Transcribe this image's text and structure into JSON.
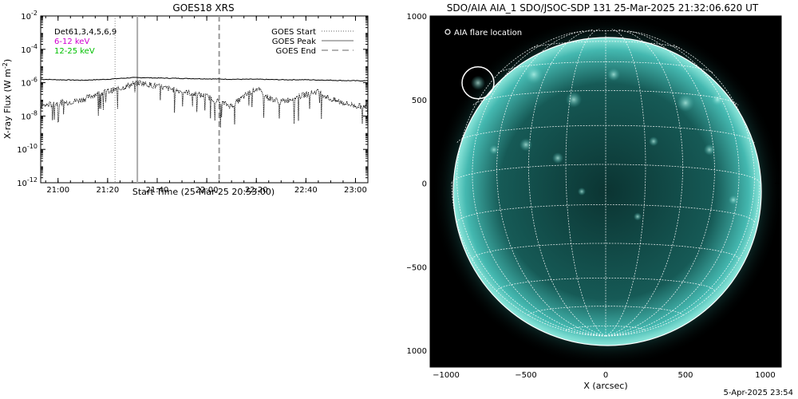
{
  "goes": {
    "title": "GOES18 XRS",
    "ylabel": "X-ray Flux (W m",
    "ylabel_sup": "-2",
    "ylabel_close": ")",
    "xlabel": "Start Time (25-Mar-25 20:53:00)",
    "legend_left": [
      {
        "label": "Det61,3,4,5,6,9",
        "color": "#000000"
      },
      {
        "label": "6-12 keV",
        "color": "#d000d0"
      },
      {
        "label": "12-25 keV",
        "color": "#00c000"
      }
    ],
    "legend_right": [
      {
        "label": "GOES Start",
        "style": "dotted"
      },
      {
        "label": "GOES Peak",
        "style": "solid"
      },
      {
        "label": "GOES End",
        "style": "dashed"
      }
    ]
  },
  "aia": {
    "title": "SDO/AIA AIA_1 SDO/JSOC-SDP 131 25-Mar-2025 21:32:06.620 UT",
    "legend": "AIA flare location",
    "xlabel": "X (arcsec)",
    "colors": {
      "disk": "#44b8b0",
      "core": "#0b3432",
      "limb": "#8fe8dc",
      "bright": "#c8fff4"
    },
    "flare_location": {
      "x": -800,
      "y": 600
    }
  },
  "timestamp": "5-Apr-2025 23:54",
  "chart_data": [
    {
      "type": "line",
      "title": "GOES18 XRS",
      "xlabel": "Start Time (25-Mar-25 20:53:00)",
      "ylabel": "X-ray Flux (W m-2)",
      "yscale": "log",
      "ylim": [
        1e-12,
        0.01
      ],
      "xlim": [
        "20:53",
        "23:05"
      ],
      "x_ticks": [
        "21:00",
        "21:20",
        "21:40",
        "22:00",
        "22:20",
        "22:40",
        "23:00"
      ],
      "y_ticks": [
        "10-12",
        "10-10",
        "10-8",
        "10-6",
        "10-4",
        "10-2"
      ],
      "legend": [
        "GOES Start",
        "GOES Peak",
        "GOES End"
      ],
      "series": [
        {
          "x": [
            "20:53",
            "21:00",
            "21:10",
            "21:20",
            "21:25",
            "21:30",
            "21:35",
            "21:40",
            "21:50",
            "22:00",
            "22:10",
            "22:20",
            "22:30",
            "22:40",
            "22:50",
            "23:00",
            "23:05"
          ],
          "values": [
            1.6e-06,
            1.5e-06,
            1.4e-06,
            1.6e-06,
            1.8e-06,
            2e-06,
            2e-06,
            1.9e-06,
            1.8e-06,
            1.7e-06,
            1.6e-06,
            1.6e-06,
            1.5e-06,
            1.5e-06,
            1.4e-06,
            1.3e-06,
            1.3e-06
          ]
        },
        {
          "x": [
            "20:53",
            "21:00",
            "21:05",
            "21:10",
            "21:15",
            "21:20",
            "21:25",
            "21:30",
            "21:33",
            "21:40",
            "21:50",
            "22:00",
            "22:05",
            "22:10",
            "22:15",
            "22:20",
            "22:25",
            "22:30",
            "22:40",
            "22:45",
            "22:50",
            "23:00",
            "23:05"
          ],
          "values": [
            4e-08,
            6e-08,
            7e-08,
            1e-07,
            2e-07,
            3e-07,
            4.5e-07,
            8e-07,
            1e-06,
            6e-07,
            3e-07,
            1.5e-07,
            7e-08,
            4e-08,
            1.5e-07,
            4.5e-07,
            1.2e-07,
            7e-08,
            2e-07,
            3e-07,
            1e-07,
            4e-08,
            4e-08
          ]
        }
      ],
      "vlines": [
        {
          "label": "GOES Start",
          "x": "21:23",
          "style": "dotted"
        },
        {
          "label": "GOES Peak",
          "x": "21:32",
          "style": "solid"
        },
        {
          "label": "GOES End",
          "x": "22:05",
          "style": "dashed"
        }
      ]
    },
    {
      "type": "scatter",
      "title": "SDO/AIA AIA_1 SDO/JSOC-SDP 131 25-Mar-2025 21:32:06.620 UT",
      "xlabel": "X (arcsec)",
      "xlim": [
        -1100,
        1100
      ],
      "ylim": [
        -1100,
        1000
      ],
      "x_ticks": [
        -1000,
        -500,
        0,
        500,
        1000
      ],
      "y_ticks": [
        -1000,
        -500,
        0,
        500,
        1000
      ],
      "legend": [
        "AIA flare location"
      ],
      "points": [
        {
          "x": -800,
          "y": 600
        }
      ]
    }
  ]
}
